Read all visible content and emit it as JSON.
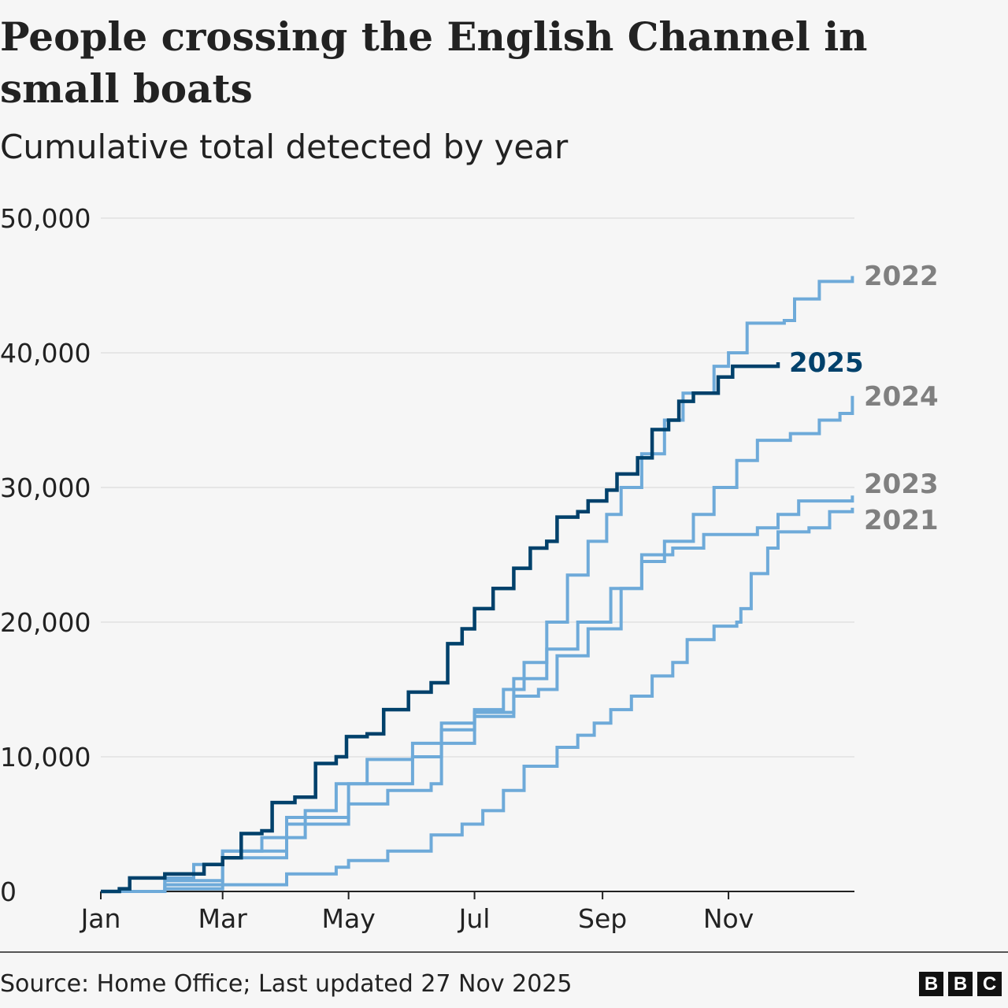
{
  "title": "People crossing the English Channel in small boats",
  "subtitle": "Cumulative total detected by year",
  "source": "Source: Home Office; Last updated 27 Nov 2025",
  "logo": [
    "B",
    "B",
    "C"
  ],
  "chart_data": {
    "type": "line",
    "title": "People crossing the English Channel in small boats",
    "subtitle": "Cumulative total detected by year",
    "xlabel": "",
    "ylabel": "",
    "x_ticks": [
      "Jan",
      "Mar",
      "May",
      "Jul",
      "Sep",
      "Nov"
    ],
    "y_ticks": [
      "0",
      "10,000",
      "20,000",
      "30,000",
      "40,000",
      "50,000"
    ],
    "ylim": [
      0,
      50000
    ],
    "grid": true,
    "legend": "direct labels at line ends",
    "colors": {
      "highlight": "#00416b",
      "other": "#6eaad9",
      "other_label": "#808080"
    },
    "series": [
      {
        "name": "2021",
        "highlight": false,
        "points": [
          [
            "01-01",
            0
          ],
          [
            "02-01",
            200
          ],
          [
            "03-01",
            500
          ],
          [
            "04-01",
            1300
          ],
          [
            "04-25",
            1800
          ],
          [
            "05-01",
            2300
          ],
          [
            "05-20",
            3000
          ],
          [
            "06-10",
            4200
          ],
          [
            "06-25",
            5000
          ],
          [
            "07-05",
            6000
          ],
          [
            "07-15",
            7500
          ],
          [
            "07-25",
            9300
          ],
          [
            "08-10",
            10700
          ],
          [
            "08-20",
            11600
          ],
          [
            "08-28",
            12500
          ],
          [
            "09-05",
            13500
          ],
          [
            "09-15",
            14500
          ],
          [
            "09-25",
            16000
          ],
          [
            "10-05",
            17000
          ],
          [
            "10-12",
            18700
          ],
          [
            "10-25",
            19700
          ],
          [
            "11-05",
            20000
          ],
          [
            "11-07",
            21000
          ],
          [
            "11-12",
            23600
          ],
          [
            "11-20",
            25500
          ],
          [
            "11-25",
            26700
          ],
          [
            "12-10",
            27000
          ],
          [
            "12-20",
            28200
          ],
          [
            "12-31",
            28500
          ]
        ]
      },
      {
        "name": "2022",
        "highlight": false,
        "points": [
          [
            "01-01",
            0
          ],
          [
            "02-01",
            1000
          ],
          [
            "02-15",
            2000
          ],
          [
            "03-01",
            3000
          ],
          [
            "03-20",
            4000
          ],
          [
            "04-10",
            6000
          ],
          [
            "04-25",
            8000
          ],
          [
            "05-10",
            9800
          ],
          [
            "06-01",
            11000
          ],
          [
            "06-15",
            12500
          ],
          [
            "07-01",
            13500
          ],
          [
            "07-15",
            15000
          ],
          [
            "07-25",
            17000
          ],
          [
            "08-05",
            20000
          ],
          [
            "08-15",
            23500
          ],
          [
            "08-25",
            26000
          ],
          [
            "09-03",
            28000
          ],
          [
            "09-10",
            30000
          ],
          [
            "09-20",
            32500
          ],
          [
            "10-01",
            35000
          ],
          [
            "10-10",
            37000
          ],
          [
            "10-25",
            39000
          ],
          [
            "11-01",
            40000
          ],
          [
            "11-10",
            42200
          ],
          [
            "11-28",
            42400
          ],
          [
            "12-03",
            44000
          ],
          [
            "12-15",
            45300
          ],
          [
            "12-31",
            45700
          ]
        ]
      },
      {
        "name": "2023",
        "highlight": false,
        "points": [
          [
            "01-01",
            0
          ],
          [
            "02-01",
            800
          ],
          [
            "03-01",
            3000
          ],
          [
            "04-01",
            5500
          ],
          [
            "05-01",
            8000
          ],
          [
            "06-01",
            10000
          ],
          [
            "06-15",
            12000
          ],
          [
            "07-01",
            13300
          ],
          [
            "07-20",
            15800
          ],
          [
            "08-05",
            18000
          ],
          [
            "08-20",
            20000
          ],
          [
            "09-05",
            22500
          ],
          [
            "09-20",
            25000
          ],
          [
            "10-05",
            25500
          ],
          [
            "10-20",
            26500
          ],
          [
            "11-15",
            27000
          ],
          [
            "11-25",
            28000
          ],
          [
            "12-05",
            29000
          ],
          [
            "12-31",
            29400
          ]
        ]
      },
      {
        "name": "2024",
        "highlight": false,
        "points": [
          [
            "01-01",
            0
          ],
          [
            "02-01",
            500
          ],
          [
            "03-01",
            2500
          ],
          [
            "04-01",
            5000
          ],
          [
            "05-01",
            6500
          ],
          [
            "05-20",
            7500
          ],
          [
            "06-10",
            8000
          ],
          [
            "06-15",
            11000
          ],
          [
            "07-01",
            13000
          ],
          [
            "07-20",
            14500
          ],
          [
            "08-01",
            15000
          ],
          [
            "08-10",
            17500
          ],
          [
            "08-25",
            19500
          ],
          [
            "09-10",
            22500
          ],
          [
            "09-20",
            24500
          ],
          [
            "10-01",
            26000
          ],
          [
            "10-15",
            28000
          ],
          [
            "10-25",
            30000
          ],
          [
            "11-05",
            32000
          ],
          [
            "11-15",
            33500
          ],
          [
            "12-01",
            34000
          ],
          [
            "12-15",
            35000
          ],
          [
            "12-25",
            35500
          ],
          [
            "12-31",
            36800
          ]
        ]
      },
      {
        "name": "2025",
        "highlight": true,
        "points": [
          [
            "01-01",
            0
          ],
          [
            "01-10",
            200
          ],
          [
            "01-15",
            1000
          ],
          [
            "02-01",
            1300
          ],
          [
            "02-20",
            2000
          ],
          [
            "03-01",
            2500
          ],
          [
            "03-10",
            4300
          ],
          [
            "03-20",
            4500
          ],
          [
            "03-25",
            6600
          ],
          [
            "04-05",
            7000
          ],
          [
            "04-15",
            9500
          ],
          [
            "04-25",
            10000
          ],
          [
            "04-30",
            11500
          ],
          [
            "05-10",
            11700
          ],
          [
            "05-18",
            13500
          ],
          [
            "05-30",
            14800
          ],
          [
            "06-10",
            15500
          ],
          [
            "06-18",
            18400
          ],
          [
            "06-25",
            19500
          ],
          [
            "07-01",
            21000
          ],
          [
            "07-10",
            22500
          ],
          [
            "07-20",
            24000
          ],
          [
            "07-28",
            25500
          ],
          [
            "08-05",
            26000
          ],
          [
            "08-10",
            27800
          ],
          [
            "08-20",
            28200
          ],
          [
            "08-25",
            29000
          ],
          [
            "09-03",
            29800
          ],
          [
            "09-08",
            31000
          ],
          [
            "09-18",
            32200
          ],
          [
            "09-25",
            34300
          ],
          [
            "10-03",
            35000
          ],
          [
            "10-08",
            36400
          ],
          [
            "10-15",
            37000
          ],
          [
            "10-27",
            38200
          ],
          [
            "11-03",
            39000
          ],
          [
            "11-25",
            39300
          ]
        ]
      }
    ]
  }
}
